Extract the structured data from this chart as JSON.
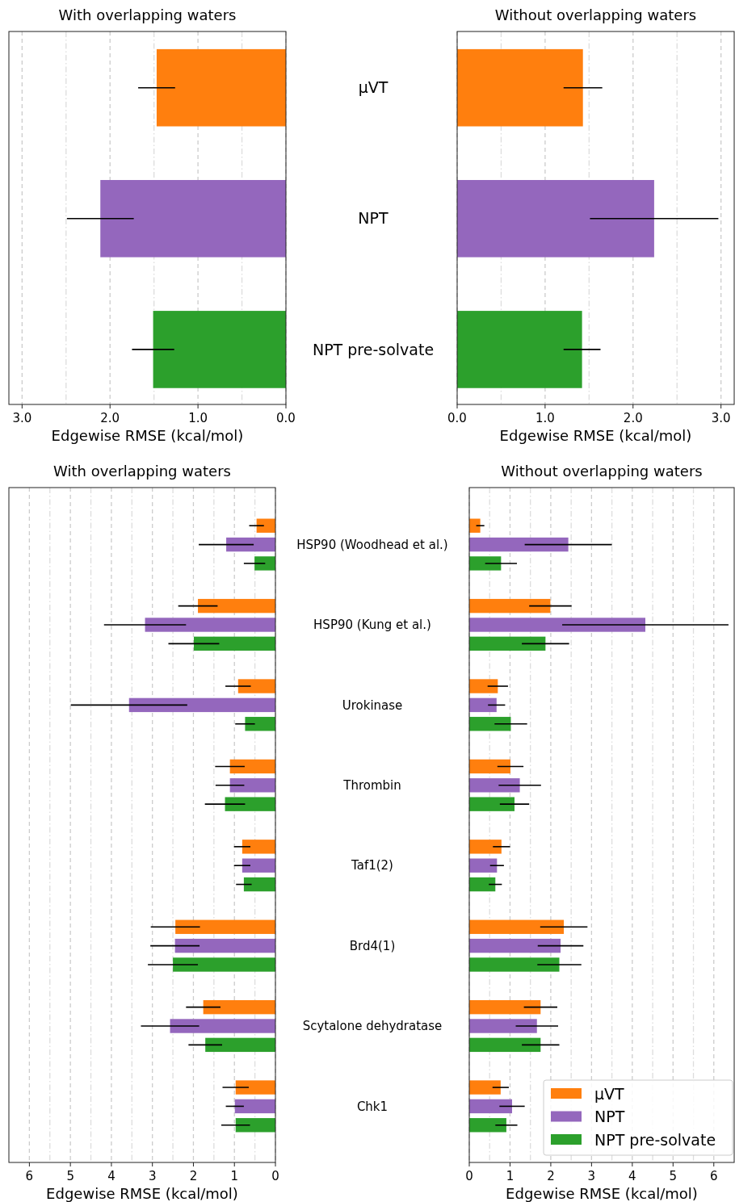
{
  "chart_data": [
    {
      "type": "bar",
      "orientation": "horizontal",
      "title": "With overlapping waters",
      "xlabel": "Edgewise RMSE (kcal/mol)",
      "categories": [
        null,
        null,
        null
      ],
      "values": [
        1.47,
        2.11,
        1.51
      ],
      "errors": [
        0.21,
        0.38,
        0.24
      ],
      "colors": [
        "#ff7f0e",
        "#9467bd",
        "#2ca02c"
      ],
      "xlim": [
        3.15,
        0
      ],
      "xticks": [
        {
          "value": 3,
          "label": "3.0"
        },
        {
          "value": 2.5,
          "label": null
        },
        {
          "value": 2,
          "label": "2.0"
        },
        {
          "value": 1.5,
          "label": null
        },
        {
          "value": 1,
          "label": "1.0"
        },
        {
          "value": 0.5,
          "label": null
        },
        {
          "value": 0,
          "label": "0.0"
        }
      ],
      "grid": "x",
      "tick_labels": "x"
    },
    {
      "type": "bar",
      "orientation": "horizontal",
      "title": "Without overlapping waters",
      "xlabel": "Edgewise RMSE (kcal/mol)",
      "categories": [
        "μVT",
        "NPT",
        "NPT pre-solvate"
      ],
      "values": [
        1.43,
        2.24,
        1.42
      ],
      "errors": [
        0.22,
        0.73,
        0.21
      ],
      "colors": [
        "#ff7f0e",
        "#9467bd",
        "#2ca02c"
      ],
      "xlim": [
        0,
        3.15
      ],
      "xticks": [
        {
          "value": 0,
          "label": "0.0"
        },
        {
          "value": 0.5,
          "label": null
        },
        {
          "value": 1,
          "label": "1.0"
        },
        {
          "value": 1.5,
          "label": null
        },
        {
          "value": 2,
          "label": "2.0"
        },
        {
          "value": 2.5,
          "label": null
        },
        {
          "value": 3,
          "label": "3.0"
        }
      ],
      "grid": "x"
    },
    {
      "type": "bar",
      "orientation": "horizontal",
      "title": "With overlapping waters",
      "xlabel": "Edgewise RMSE (kcal/mol)",
      "categories": [
        null,
        null,
        null,
        null,
        null,
        null,
        null,
        null
      ],
      "series": [
        {
          "color": "#ff7f0e",
          "values": [
            0.46,
            1.89,
            0.91,
            1.11,
            0.81,
            2.44,
            1.76,
            0.97
          ],
          "errors": [
            0.18,
            0.48,
            0.31,
            0.36,
            0.2,
            0.6,
            0.42,
            0.32
          ]
        },
        {
          "color": "#9467bd",
          "values": [
            1.2,
            3.18,
            3.57,
            1.11,
            0.81,
            2.45,
            2.57,
            0.99
          ],
          "errors": [
            0.67,
            1.0,
            1.42,
            0.35,
            0.2,
            0.6,
            0.71,
            0.22
          ]
        },
        {
          "color": "#2ca02c",
          "values": [
            0.51,
            1.99,
            0.74,
            1.23,
            0.77,
            2.5,
            1.71,
            0.97
          ],
          "errors": [
            0.26,
            0.62,
            0.24,
            0.49,
            0.19,
            0.61,
            0.41,
            0.35
          ]
        }
      ],
      "xlim": [
        6.5,
        0
      ],
      "xticks": [
        {
          "value": 6,
          "label": "6"
        },
        {
          "value": 5.5,
          "label": null
        },
        {
          "value": 5,
          "label": "5"
        },
        {
          "value": 4.5,
          "label": null
        },
        {
          "value": 4,
          "label": "4"
        },
        {
          "value": 3.5,
          "label": null
        },
        {
          "value": 3,
          "label": "3"
        },
        {
          "value": 2.5,
          "label": null
        },
        {
          "value": 2,
          "label": "2"
        },
        {
          "value": 1.5,
          "label": null
        },
        {
          "value": 1,
          "label": "1"
        },
        {
          "value": 0.5,
          "label": null
        },
        {
          "value": 0,
          "label": "0"
        }
      ],
      "grid": "x",
      "tick_labels": "x"
    },
    {
      "type": "bar",
      "orientation": "horizontal",
      "title": "Without overlapping waters",
      "xlabel": "Edgewise RMSE (kcal/mol)",
      "categories": [
        "HSP90 (Woodhead et al.)",
        "HSP90 (Kung et al.)",
        "Urokinase",
        "Thrombin",
        "Taf1(2)",
        "Brd4(1)",
        "Scytalone dehydratase",
        "Chk1"
      ],
      "series": [
        {
          "name": "μVT",
          "color": "#ff7f0e",
          "values": [
            0.27,
            1.99,
            0.7,
            1.01,
            0.79,
            2.32,
            1.75,
            0.77
          ],
          "errors": [
            0.1,
            0.52,
            0.25,
            0.32,
            0.21,
            0.58,
            0.41,
            0.2
          ]
        },
        {
          "name": "NPT",
          "color": "#9467bd",
          "values": [
            2.43,
            4.32,
            0.67,
            1.24,
            0.68,
            2.24,
            1.66,
            1.05
          ],
          "errors": [
            1.07,
            2.04,
            0.21,
            0.52,
            0.17,
            0.56,
            0.52,
            0.31
          ]
        },
        {
          "name": "NPT pre-solvate",
          "color": "#2ca02c",
          "values": [
            0.78,
            1.87,
            1.02,
            1.11,
            0.64,
            2.21,
            1.75,
            0.91
          ],
          "errors": [
            0.39,
            0.58,
            0.4,
            0.36,
            0.16,
            0.54,
            0.46,
            0.27
          ]
        }
      ],
      "xlim": [
        0,
        6.5
      ],
      "xticks": [
        {
          "value": 0,
          "label": "0"
        },
        {
          "value": 0.5,
          "label": null
        },
        {
          "value": 1,
          "label": "1"
        },
        {
          "value": 1.5,
          "label": null
        },
        {
          "value": 2,
          "label": "2"
        },
        {
          "value": 2.5,
          "label": null
        },
        {
          "value": 3,
          "label": "3"
        },
        {
          "value": 3.5,
          "label": null
        },
        {
          "value": 4,
          "label": "4"
        },
        {
          "value": 4.5,
          "label": null
        },
        {
          "value": 5,
          "label": "5"
        },
        {
          "value": 5.5,
          "label": null
        },
        {
          "value": 6,
          "label": "6"
        }
      ],
      "grid": "x",
      "legend": "bottom right"
    }
  ]
}
